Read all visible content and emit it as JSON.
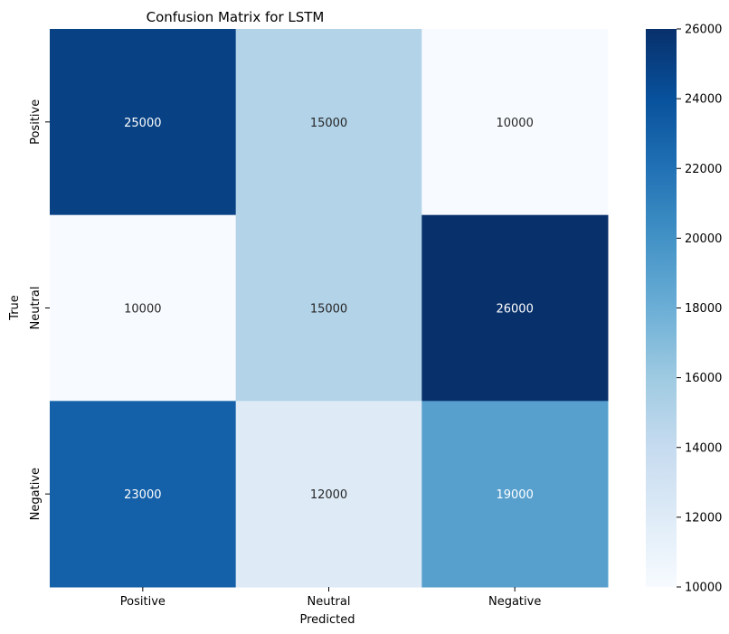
{
  "chart_data": {
    "type": "heatmap",
    "title": "Confusion Matrix for LSTM",
    "xlabel": "Predicted",
    "ylabel": "True",
    "x_categories": [
      "Positive",
      "Neutral",
      "Negative"
    ],
    "y_categories": [
      "Positive",
      "Neutral",
      "Negative"
    ],
    "values": [
      [
        25000,
        15000,
        10000
      ],
      [
        10000,
        15000,
        26000
      ],
      [
        23000,
        12000,
        19000
      ]
    ],
    "cell_labels": [
      [
        "25000",
        "15000",
        "10000"
      ],
      [
        "10000",
        "15000",
        "26000"
      ],
      [
        "23000",
        "12000",
        "19000"
      ]
    ],
    "colormap": "Blues",
    "color_range": [
      10000,
      26000
    ],
    "colorbar_ticks": [
      10000,
      12000,
      14000,
      16000,
      18000,
      20000,
      22000,
      24000,
      26000
    ],
    "colorbar_tick_labels": [
      "10000",
      "12000",
      "14000",
      "16000",
      "18000",
      "20000",
      "22000",
      "24000",
      "26000"
    ],
    "colors": {
      "low": "#f7fbff",
      "high": "#08306b",
      "text_on_dark": "#ffffff",
      "text_on_light": "#262626"
    }
  }
}
